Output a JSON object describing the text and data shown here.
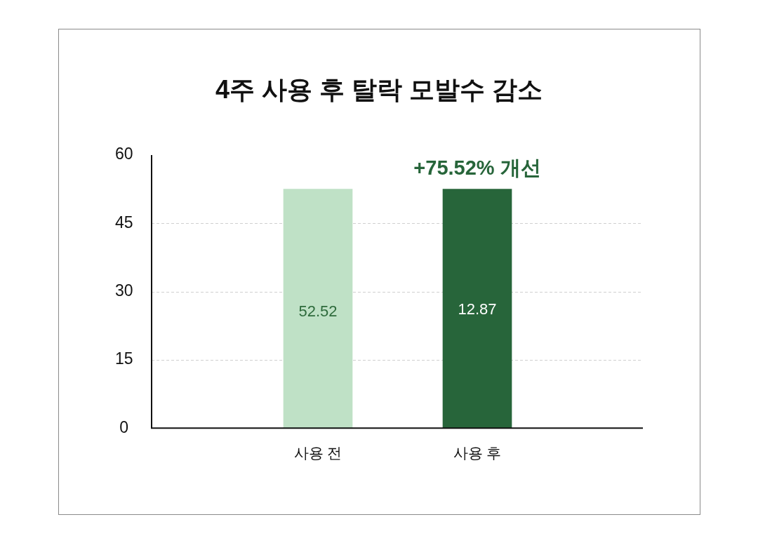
{
  "chart_data": {
    "type": "bar",
    "title": "4주 사용 후 탈락 모발수 감소",
    "categories": [
      "사용 전",
      "사용 후"
    ],
    "values": [
      52.52,
      52.52
    ],
    "colors": [
      "#bfe1c6",
      "#27653a"
    ],
    "value_labels": [
      "52.52",
      null
    ],
    "ylim": [
      0,
      60
    ],
    "yticks": [
      0,
      15,
      30,
      45,
      60
    ],
    "grid": "y",
    "annotations": [
      {
        "text": "+75.52% 개선",
        "x": "사용 후",
        "y": 52.52
      },
      "12.87"
    ]
  }
}
